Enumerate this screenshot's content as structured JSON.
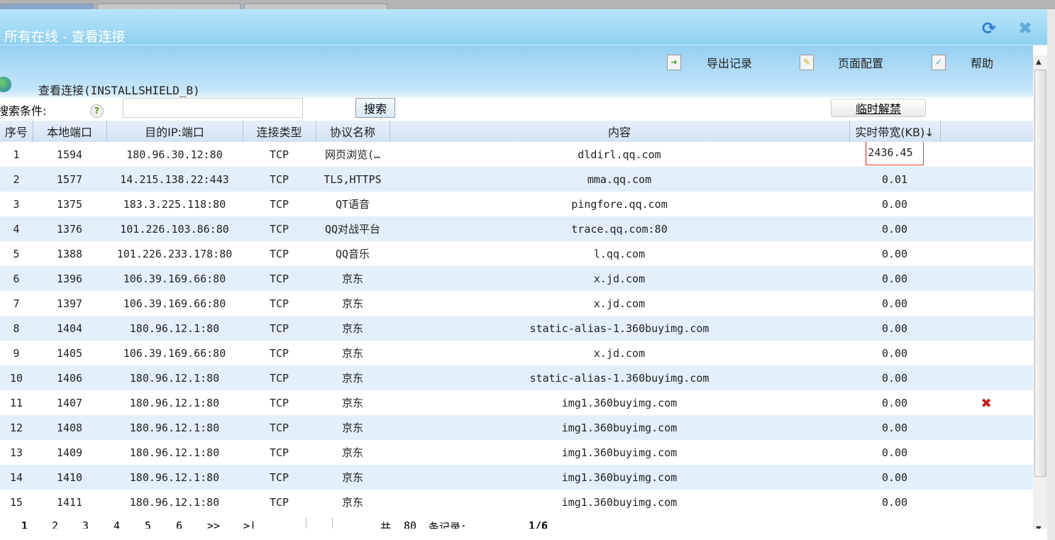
{
  "dialog": {
    "title": "所有在线 - 查看连接",
    "refresh_icon": "refresh-icon",
    "close_icon": "close-icon"
  },
  "toolbar": {
    "export": "导出记录",
    "page_config": "页面配置",
    "help": "帮助",
    "connection_title": "查看连接(INSTALLSHIELD_B)"
  },
  "search": {
    "label": "搜索条件:",
    "value": "",
    "button": "搜索",
    "unban_button": "临时解禁"
  },
  "table": {
    "headers": [
      "序号",
      "本地端口",
      "目的IP:端口",
      "连接类型",
      "协议名称",
      "内容",
      "实时带宽(KB)↓",
      ""
    ],
    "rows": [
      [
        "1",
        "1594",
        "180.96.30.12:80",
        "TCP",
        "网页浏览(…",
        "dldirl.qq.com",
        "2436.45"
      ],
      [
        "2",
        "1577",
        "14.215.138.22:443",
        "TCP",
        "TLS,HTTPS",
        "mma.qq.com",
        "0.01"
      ],
      [
        "3",
        "1375",
        "183.3.225.118:80",
        "TCP",
        "QT语音",
        "pingfore.qq.com",
        "0.00"
      ],
      [
        "4",
        "1376",
        "101.226.103.86:80",
        "TCP",
        "QQ对战平台",
        "trace.qq.com:80",
        "0.00"
      ],
      [
        "5",
        "1388",
        "101.226.233.178:80",
        "TCP",
        "QQ音乐",
        "l.qq.com",
        "0.00"
      ],
      [
        "6",
        "1396",
        "106.39.169.66:80",
        "TCP",
        "京东",
        "x.jd.com",
        "0.00"
      ],
      [
        "7",
        "1397",
        "106.39.169.66:80",
        "TCP",
        "京东",
        "x.jd.com",
        "0.00"
      ],
      [
        "8",
        "1404",
        "180.96.12.1:80",
        "TCP",
        "京东",
        "static-alias-1.360buyimg.com",
        "0.00"
      ],
      [
        "9",
        "1405",
        "106.39.169.66:80",
        "TCP",
        "京东",
        "x.jd.com",
        "0.00"
      ],
      [
        "10",
        "1406",
        "180.96.12.1:80",
        "TCP",
        "京东",
        "static-alias-1.360buyimg.com",
        "0.00"
      ],
      [
        "11",
        "1407",
        "180.96.12.1:80",
        "TCP",
        "京东",
        "img1.360buyimg.com",
        "0.00"
      ],
      [
        "12",
        "1408",
        "180.96.12.1:80",
        "TCP",
        "京东",
        "img1.360buyimg.com",
        "0.00"
      ],
      [
        "13",
        "1409",
        "180.96.12.1:80",
        "TCP",
        "京东",
        "img1.360buyimg.com",
        "0.00"
      ],
      [
        "14",
        "1410",
        "180.96.12.1:80",
        "TCP",
        "京东",
        "img1.360buyimg.com",
        "0.00"
      ],
      [
        "15",
        "1411",
        "180.96.12.1:80",
        "TCP",
        "京东",
        "img1.360buyimg.com",
        "0.00"
      ]
    ],
    "delete_row": 11
  },
  "pager": {
    "pages": [
      "1",
      "2",
      "3",
      "4",
      "5",
      "6"
    ],
    "next": ">>",
    "last": ">|",
    "total_prefix": "共",
    "total": "80",
    "total_suffix": "条记录:",
    "page_info": "1/6"
  }
}
